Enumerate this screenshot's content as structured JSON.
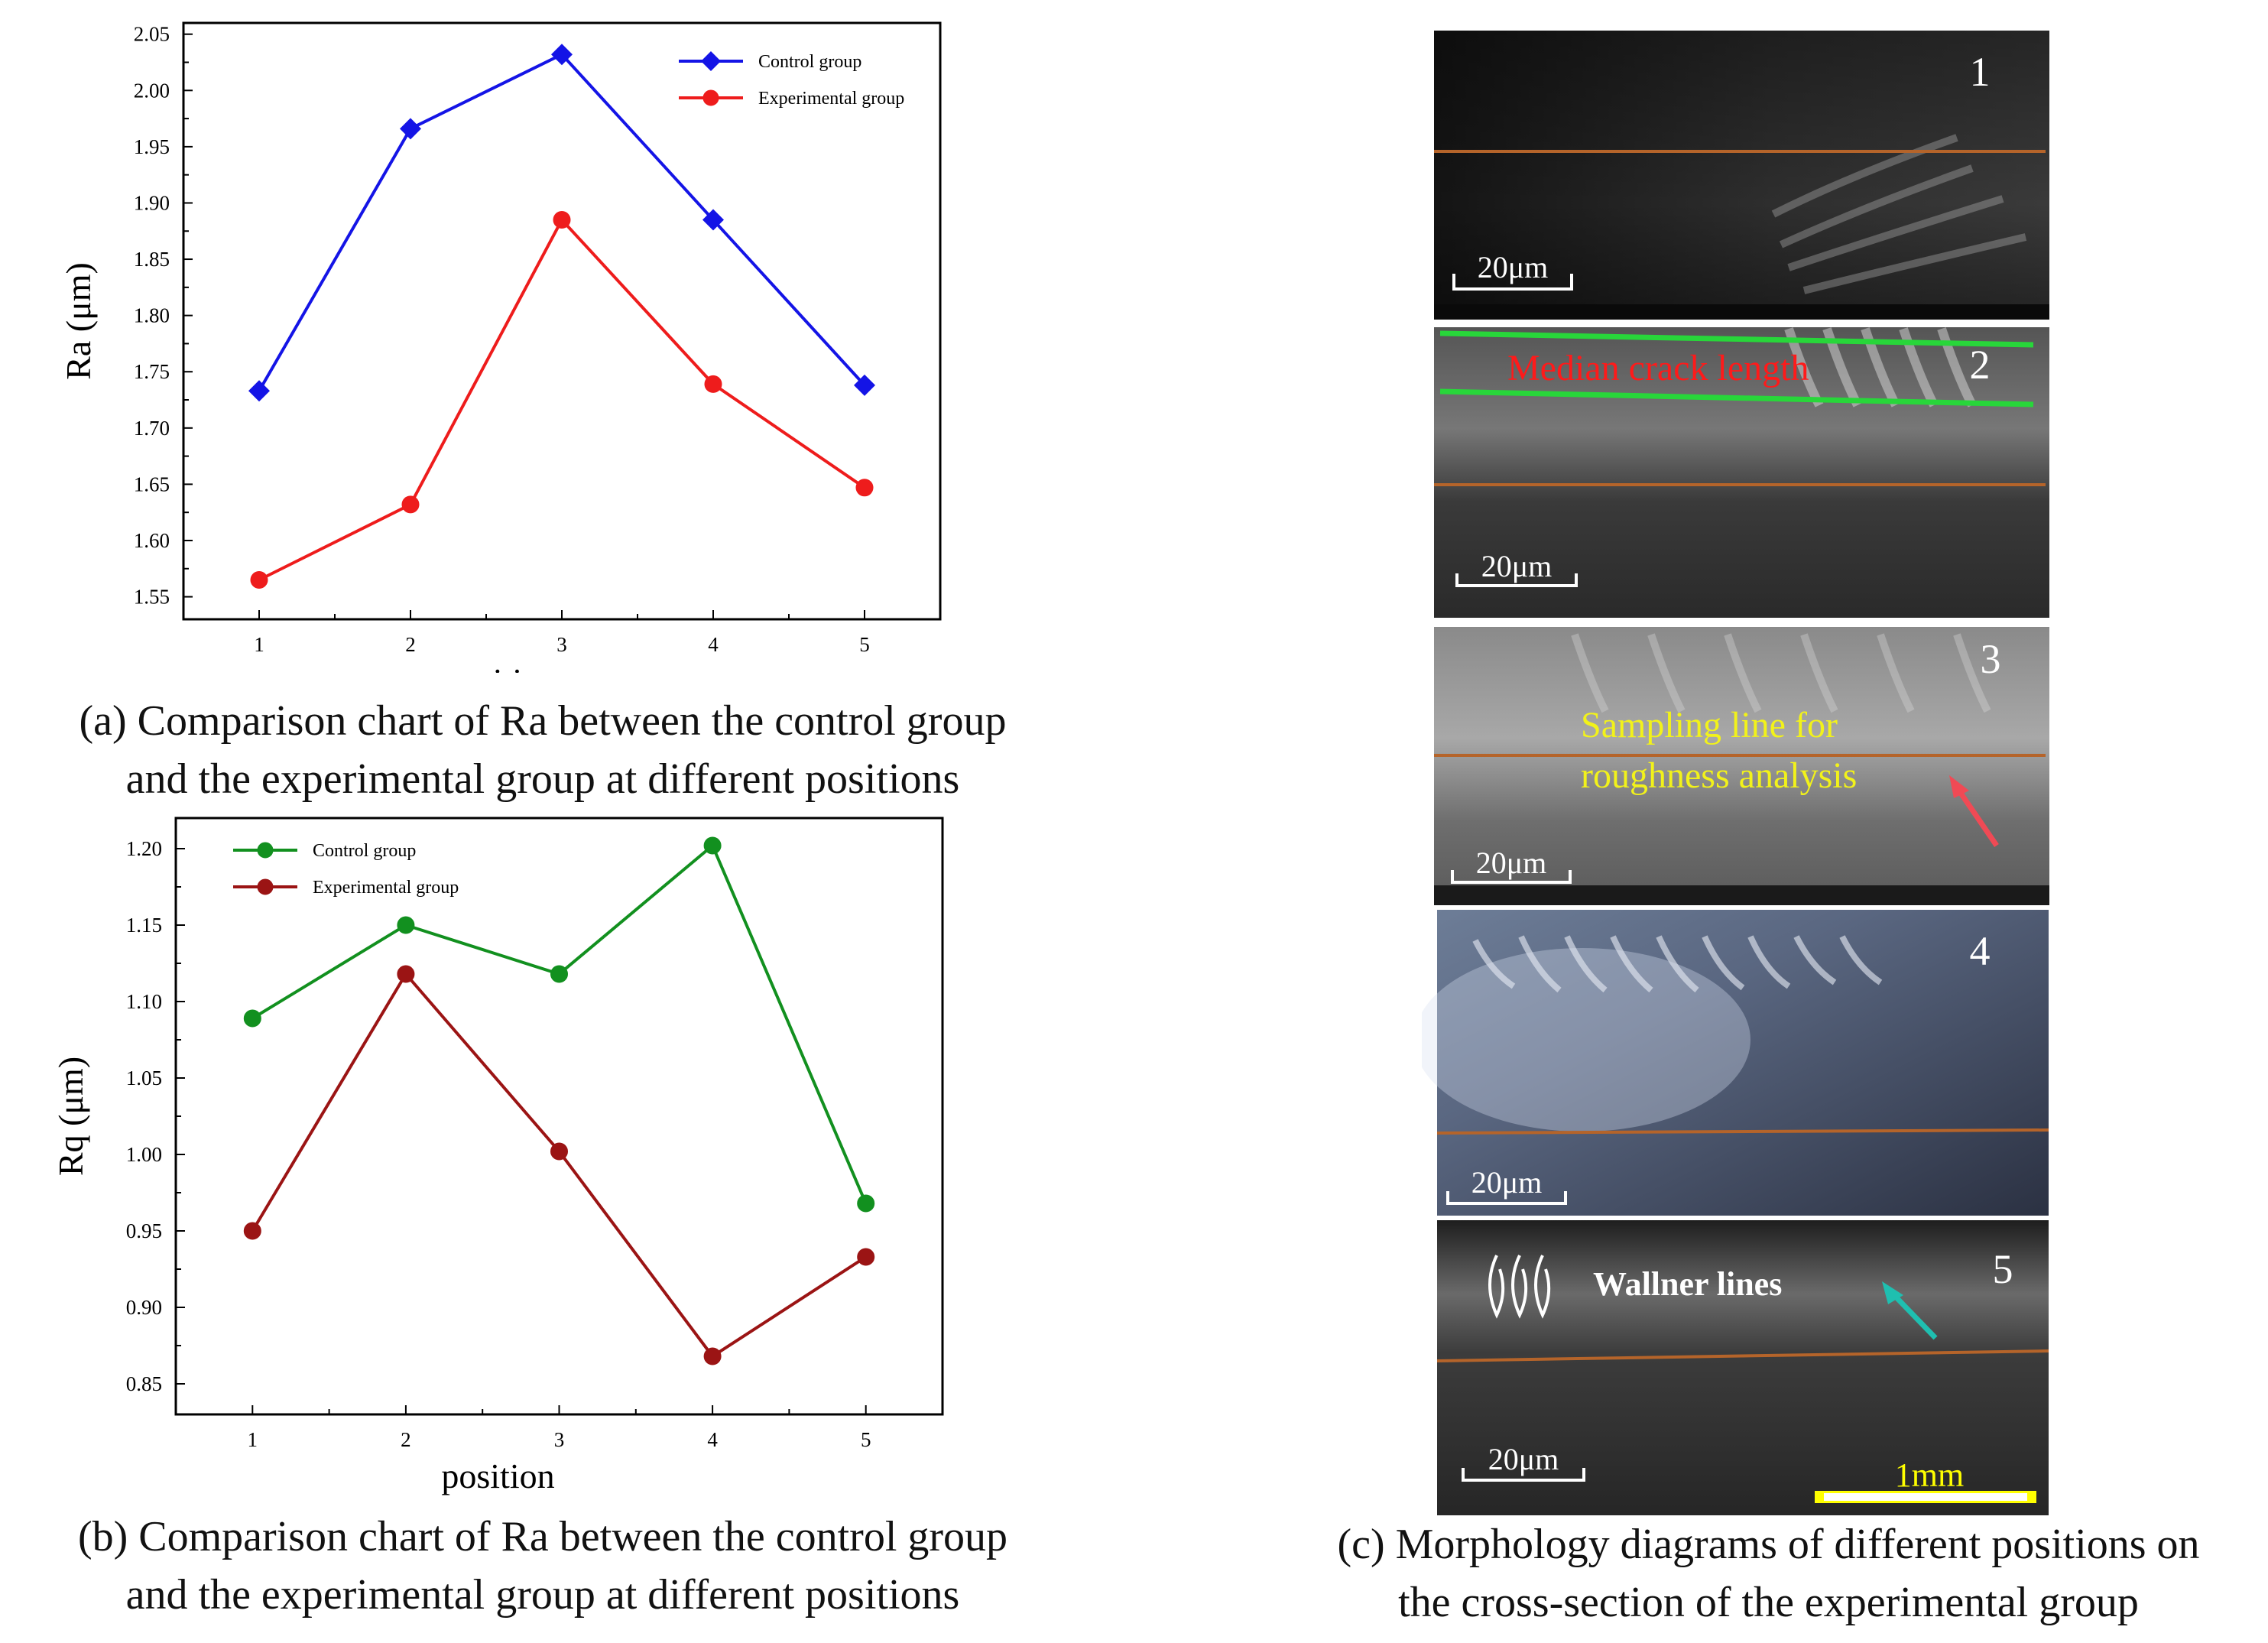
{
  "chart_data": [
    {
      "type": "line",
      "ylabel": "Ra (μm)",
      "xlabel": "position",
      "categories": [
        "1",
        "2",
        "3",
        "4",
        "5"
      ],
      "yticks": [
        "1.55",
        "1.60",
        "1.65",
        "1.70",
        "1.75",
        "1.80",
        "1.85",
        "1.90",
        "1.95",
        "2.00",
        "2.05"
      ],
      "ylim": [
        1.53,
        2.06
      ],
      "legend_position": "top-right",
      "grid": false,
      "series": [
        {
          "name": "Control group",
          "color": "#1414e6",
          "marker": "diamond",
          "values": [
            1.733,
            1.966,
            2.032,
            1.885,
            1.738
          ]
        },
        {
          "name": "Experimental group",
          "color": "#ee1c1c",
          "marker": "circle",
          "values": [
            1.565,
            1.632,
            1.885,
            1.739,
            1.647
          ]
        }
      ],
      "caption_line1": "(a) Comparison chart of Ra between the control group",
      "caption_line2": "and the experimental group at different positions"
    },
    {
      "type": "line",
      "ylabel": "Rq (μm)",
      "xlabel": "position",
      "categories": [
        "1",
        "2",
        "3",
        "4",
        "5"
      ],
      "yticks": [
        "0.85",
        "0.90",
        "0.95",
        "1.00",
        "1.05",
        "1.10",
        "1.15",
        "1.20"
      ],
      "ylim": [
        0.83,
        1.22
      ],
      "legend_position": "top-left",
      "grid": false,
      "series": [
        {
          "name": "Control group",
          "color": "#12901f",
          "marker": "circle",
          "values": [
            1.089,
            1.15,
            1.118,
            1.202,
            0.968
          ]
        },
        {
          "name": "Experimental group",
          "color": "#9b1414",
          "marker": "circle",
          "values": [
            0.95,
            1.118,
            1.002,
            0.868,
            0.933
          ]
        }
      ],
      "caption_line1": "(b) Comparison chart of Ra between the control group",
      "caption_line2": "and the experimental group at different positions"
    }
  ],
  "morphology": {
    "panels": [
      {
        "number": "1",
        "scale": "20μm"
      },
      {
        "number": "2",
        "scale": "20μm",
        "annotation": "Median crack length"
      },
      {
        "number": "3",
        "scale": "20μm",
        "annotation_line1": "Sampling line for",
        "annotation_line2": "roughness analysis"
      },
      {
        "number": "4",
        "scale": "20μm"
      },
      {
        "number": "5",
        "scale": "20μm",
        "annotation": "Wallner lines",
        "scale2": "1mm"
      }
    ],
    "annotation_colors": {
      "crack": "#ff1a1a",
      "sampling": "#f2f21a",
      "wallner": "#ffffff",
      "guide_line": "#b5642a",
      "crack_line": "#28d63a",
      "arrow_red": "#f04a55",
      "arrow_teal": "#1fbfb0"
    },
    "caption_line1": "(c) Morphology diagrams of different positions on",
    "caption_line2": "the cross-section of the experimental group"
  }
}
